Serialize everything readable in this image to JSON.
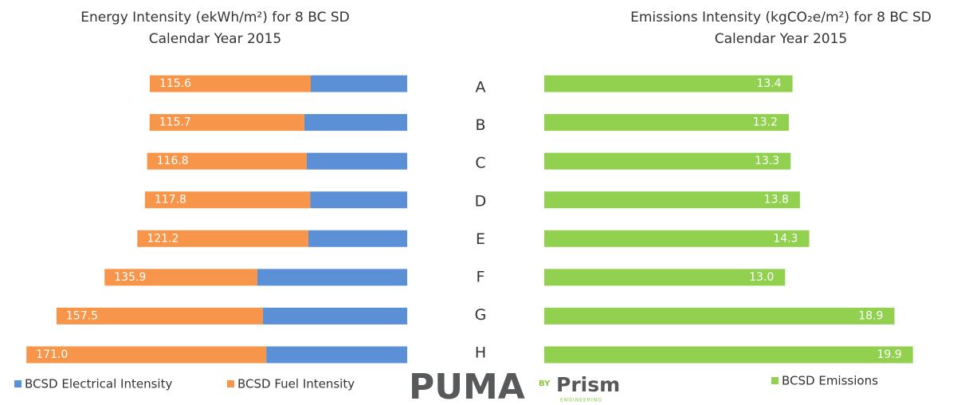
{
  "chart_data": [
    {
      "type": "stacked-bar",
      "title": "Energy Intensity (ekWh/m²) for 8 BC SD",
      "subtitle": "Calendar Year 2015",
      "categories": [
        "A",
        "B",
        "C",
        "D",
        "E",
        "F",
        "G",
        "H"
      ],
      "series": [
        {
          "name": "BCSD Electrical Intensity",
          "color": "#5b8fd6",
          "values": [
            43.3,
            46.2,
            45.1,
            43.6,
            44.4,
            67.3,
            64.8,
            63.3
          ]
        },
        {
          "name": "BCSD Fuel Intensity",
          "color": "#f7964a",
          "values": [
            72.3,
            69.5,
            71.7,
            74.2,
            76.8,
            68.6,
            92.7,
            107.7
          ]
        }
      ],
      "total_labels": [
        "115.6",
        "115.7",
        "116.8",
        "117.8",
        "121.2",
        "135.9",
        "157.5",
        "171.0"
      ],
      "xlim": [
        0,
        175
      ]
    },
    {
      "type": "bar",
      "title": "Emissions Intensity (kgCO₂e/m²) for 8 BC SD",
      "subtitle": "Calendar Year 2015",
      "series": [
        {
          "name": "BCSD Emissions",
          "color": "#92d050",
          "values": [
            13.4,
            13.2,
            13.3,
            13.8,
            14.3,
            13.0,
            18.9,
            19.9
          ],
          "value_labels": [
            "13.4",
            "13.2",
            "13.3",
            "13.8",
            "14.3",
            "13.0",
            "18.9",
            "19.9"
          ]
        }
      ],
      "xlim": [
        0,
        20
      ]
    }
  ],
  "logo": {
    "name": "PUMA",
    "by": "BY",
    "brand": "Prism",
    "tagline": "ENGINEERING"
  }
}
